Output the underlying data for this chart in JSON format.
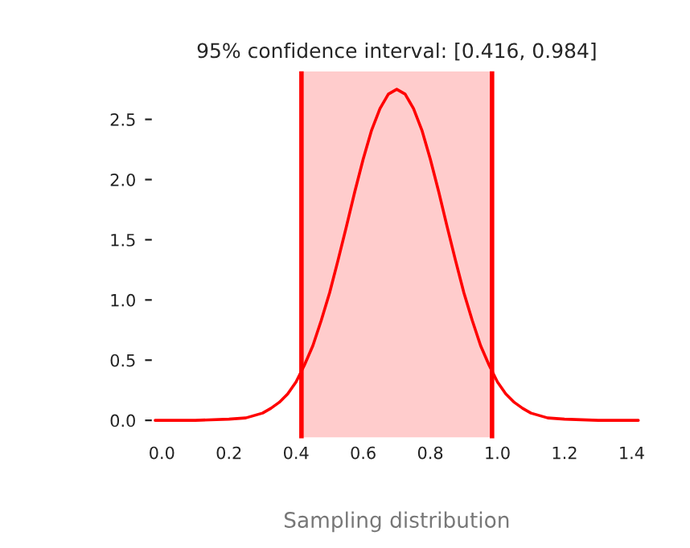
{
  "chart_data": {
    "type": "line",
    "title": "95% confidence interval: [0.416, 0.984]",
    "xlabel": "Sampling distribution",
    "series": [
      {
        "color": "#ff0000",
        "x": [
          -0.02,
          0.1,
          0.2,
          0.25,
          0.3,
          0.325,
          0.35,
          0.375,
          0.4,
          0.425,
          0.45,
          0.475,
          0.5,
          0.525,
          0.55,
          0.575,
          0.6,
          0.625,
          0.65,
          0.675,
          0.7,
          0.725,
          0.75,
          0.775,
          0.8,
          0.825,
          0.85,
          0.875,
          0.9,
          0.925,
          0.95,
          0.975,
          1.0,
          1.025,
          1.05,
          1.075,
          1.1,
          1.15,
          1.2,
          1.3,
          1.42
        ],
        "values": [
          0.0,
          0.0,
          0.01,
          0.02,
          0.06,
          0.1,
          0.15,
          0.22,
          0.32,
          0.46,
          0.62,
          0.83,
          1.06,
          1.33,
          1.61,
          1.9,
          2.17,
          2.41,
          2.59,
          2.71,
          2.75,
          2.71,
          2.59,
          2.41,
          2.17,
          1.9,
          1.61,
          1.33,
          1.06,
          0.83,
          0.62,
          0.46,
          0.32,
          0.22,
          0.15,
          0.1,
          0.06,
          0.02,
          0.01,
          0.0,
          0.0
        ]
      }
    ],
    "ref_lines": [
      {
        "axis": "x",
        "value": 0.416,
        "color": "#ff0000"
      },
      {
        "axis": "x",
        "value": 0.984,
        "color": "#ff0000"
      }
    ],
    "bands": [
      {
        "axis": "x",
        "from": 0.416,
        "to": 0.984,
        "color": "#ffcccc"
      }
    ],
    "xlim": [
      -0.03,
      1.43
    ],
    "ylim": [
      -0.15,
      2.9
    ],
    "xticks": [
      {
        "value": 0,
        "label": "0.0"
      },
      0.2,
      0.4,
      0.6,
      0.8,
      {
        "value": 1,
        "label": "1.0"
      },
      1.2,
      1.4
    ],
    "yticks": [
      {
        "value": 0,
        "label": "0.0"
      },
      0.5,
      {
        "value": 1,
        "label": "1.0"
      },
      1.5,
      {
        "value": 2,
        "label": "2.0"
      },
      2.5
    ],
    "grid": false,
    "marker": "none",
    "line_style": "solid"
  }
}
